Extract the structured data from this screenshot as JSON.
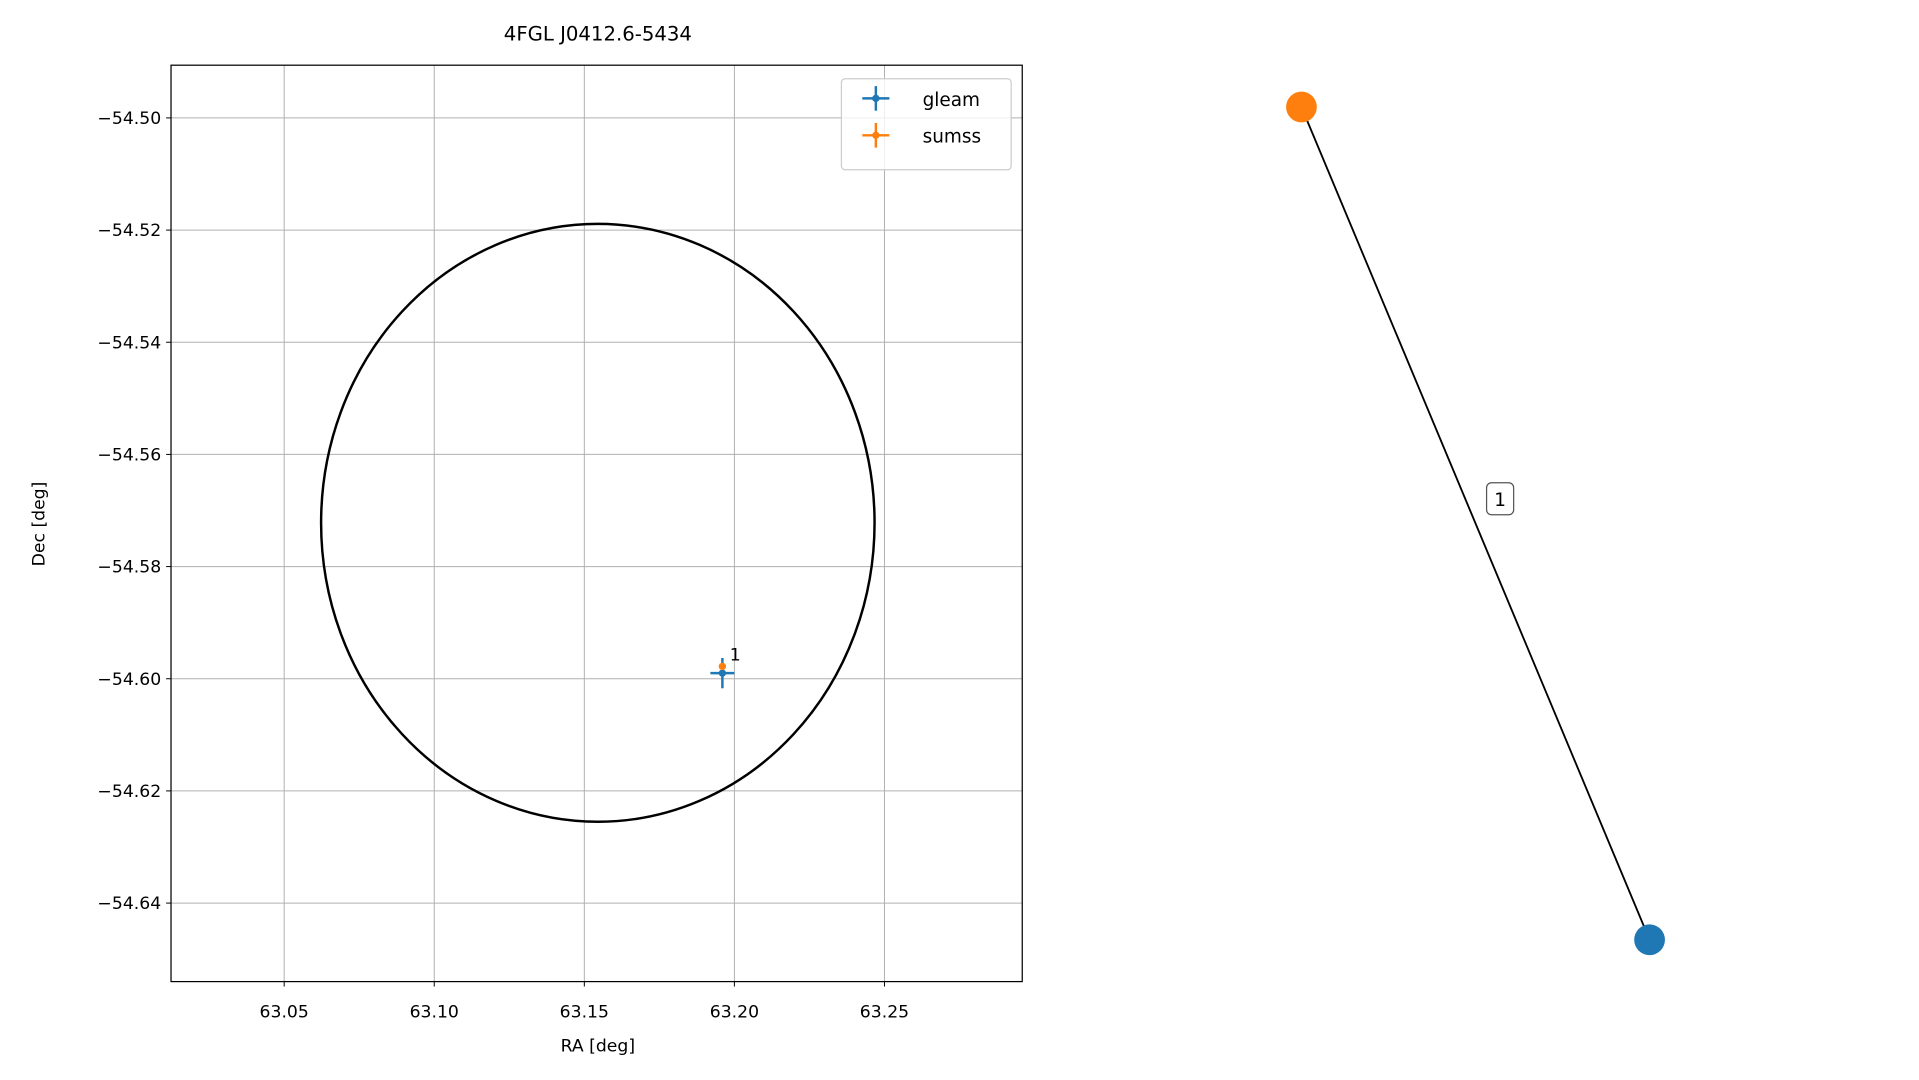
{
  "chart_data": [
    {
      "type": "scatter",
      "title": "4FGL J0412.6-5434",
      "x_label": "RA [deg]",
      "y_label": "Dec [deg]",
      "xlim": [
        63.0123,
        63.2959
      ],
      "ylim": [
        -54.654,
        -54.4906
      ],
      "xticks": [
        63.05,
        {
          "value": 63.1,
          "label": "63.10"
        },
        63.15,
        {
          "value": 63.2,
          "label": "63.20"
        },
        63.25
      ],
      "yticks": [
        {
          "value": -54.5,
          "label": "−54.50"
        },
        {
          "value": -54.52,
          "label": "−54.52"
        },
        {
          "value": -54.54,
          "label": "−54.54"
        },
        {
          "value": -54.56,
          "label": "−54.56"
        },
        {
          "value": -54.58,
          "label": "−54.58"
        },
        {
          "value": -54.6,
          "label": "−54.60"
        },
        {
          "value": -54.62,
          "label": "−54.62"
        },
        {
          "value": -54.64,
          "label": "−54.64"
        }
      ],
      "grid": true,
      "legend": "upper right",
      "region": {
        "x": 63.1545,
        "y": -54.5722,
        "rx": 0.0922,
        "ry": 0.0533,
        "color": "#000000"
      },
      "series": [
        {
          "name": "gleam",
          "color": "#1f77b4",
          "x": [
            63.196
          ],
          "values": [
            -54.599
          ],
          "xerr": [
            0.004
          ],
          "yerr": [
            0.0027
          ]
        },
        {
          "name": "sumss",
          "color": "#ff7f0e",
          "x": [
            63.196
          ],
          "values": [
            -54.5978
          ],
          "xerr": [
            0.0006
          ],
          "yerr": [
            0.0006
          ],
          "point_labels": [
            "1"
          ]
        }
      ]
    },
    {
      "type": "graph",
      "nodes": [
        {
          "color": "#ff7f0e"
        },
        {
          "color": "#1f77b4"
        }
      ],
      "edges": [
        {
          "label": "1"
        }
      ]
    }
  ]
}
